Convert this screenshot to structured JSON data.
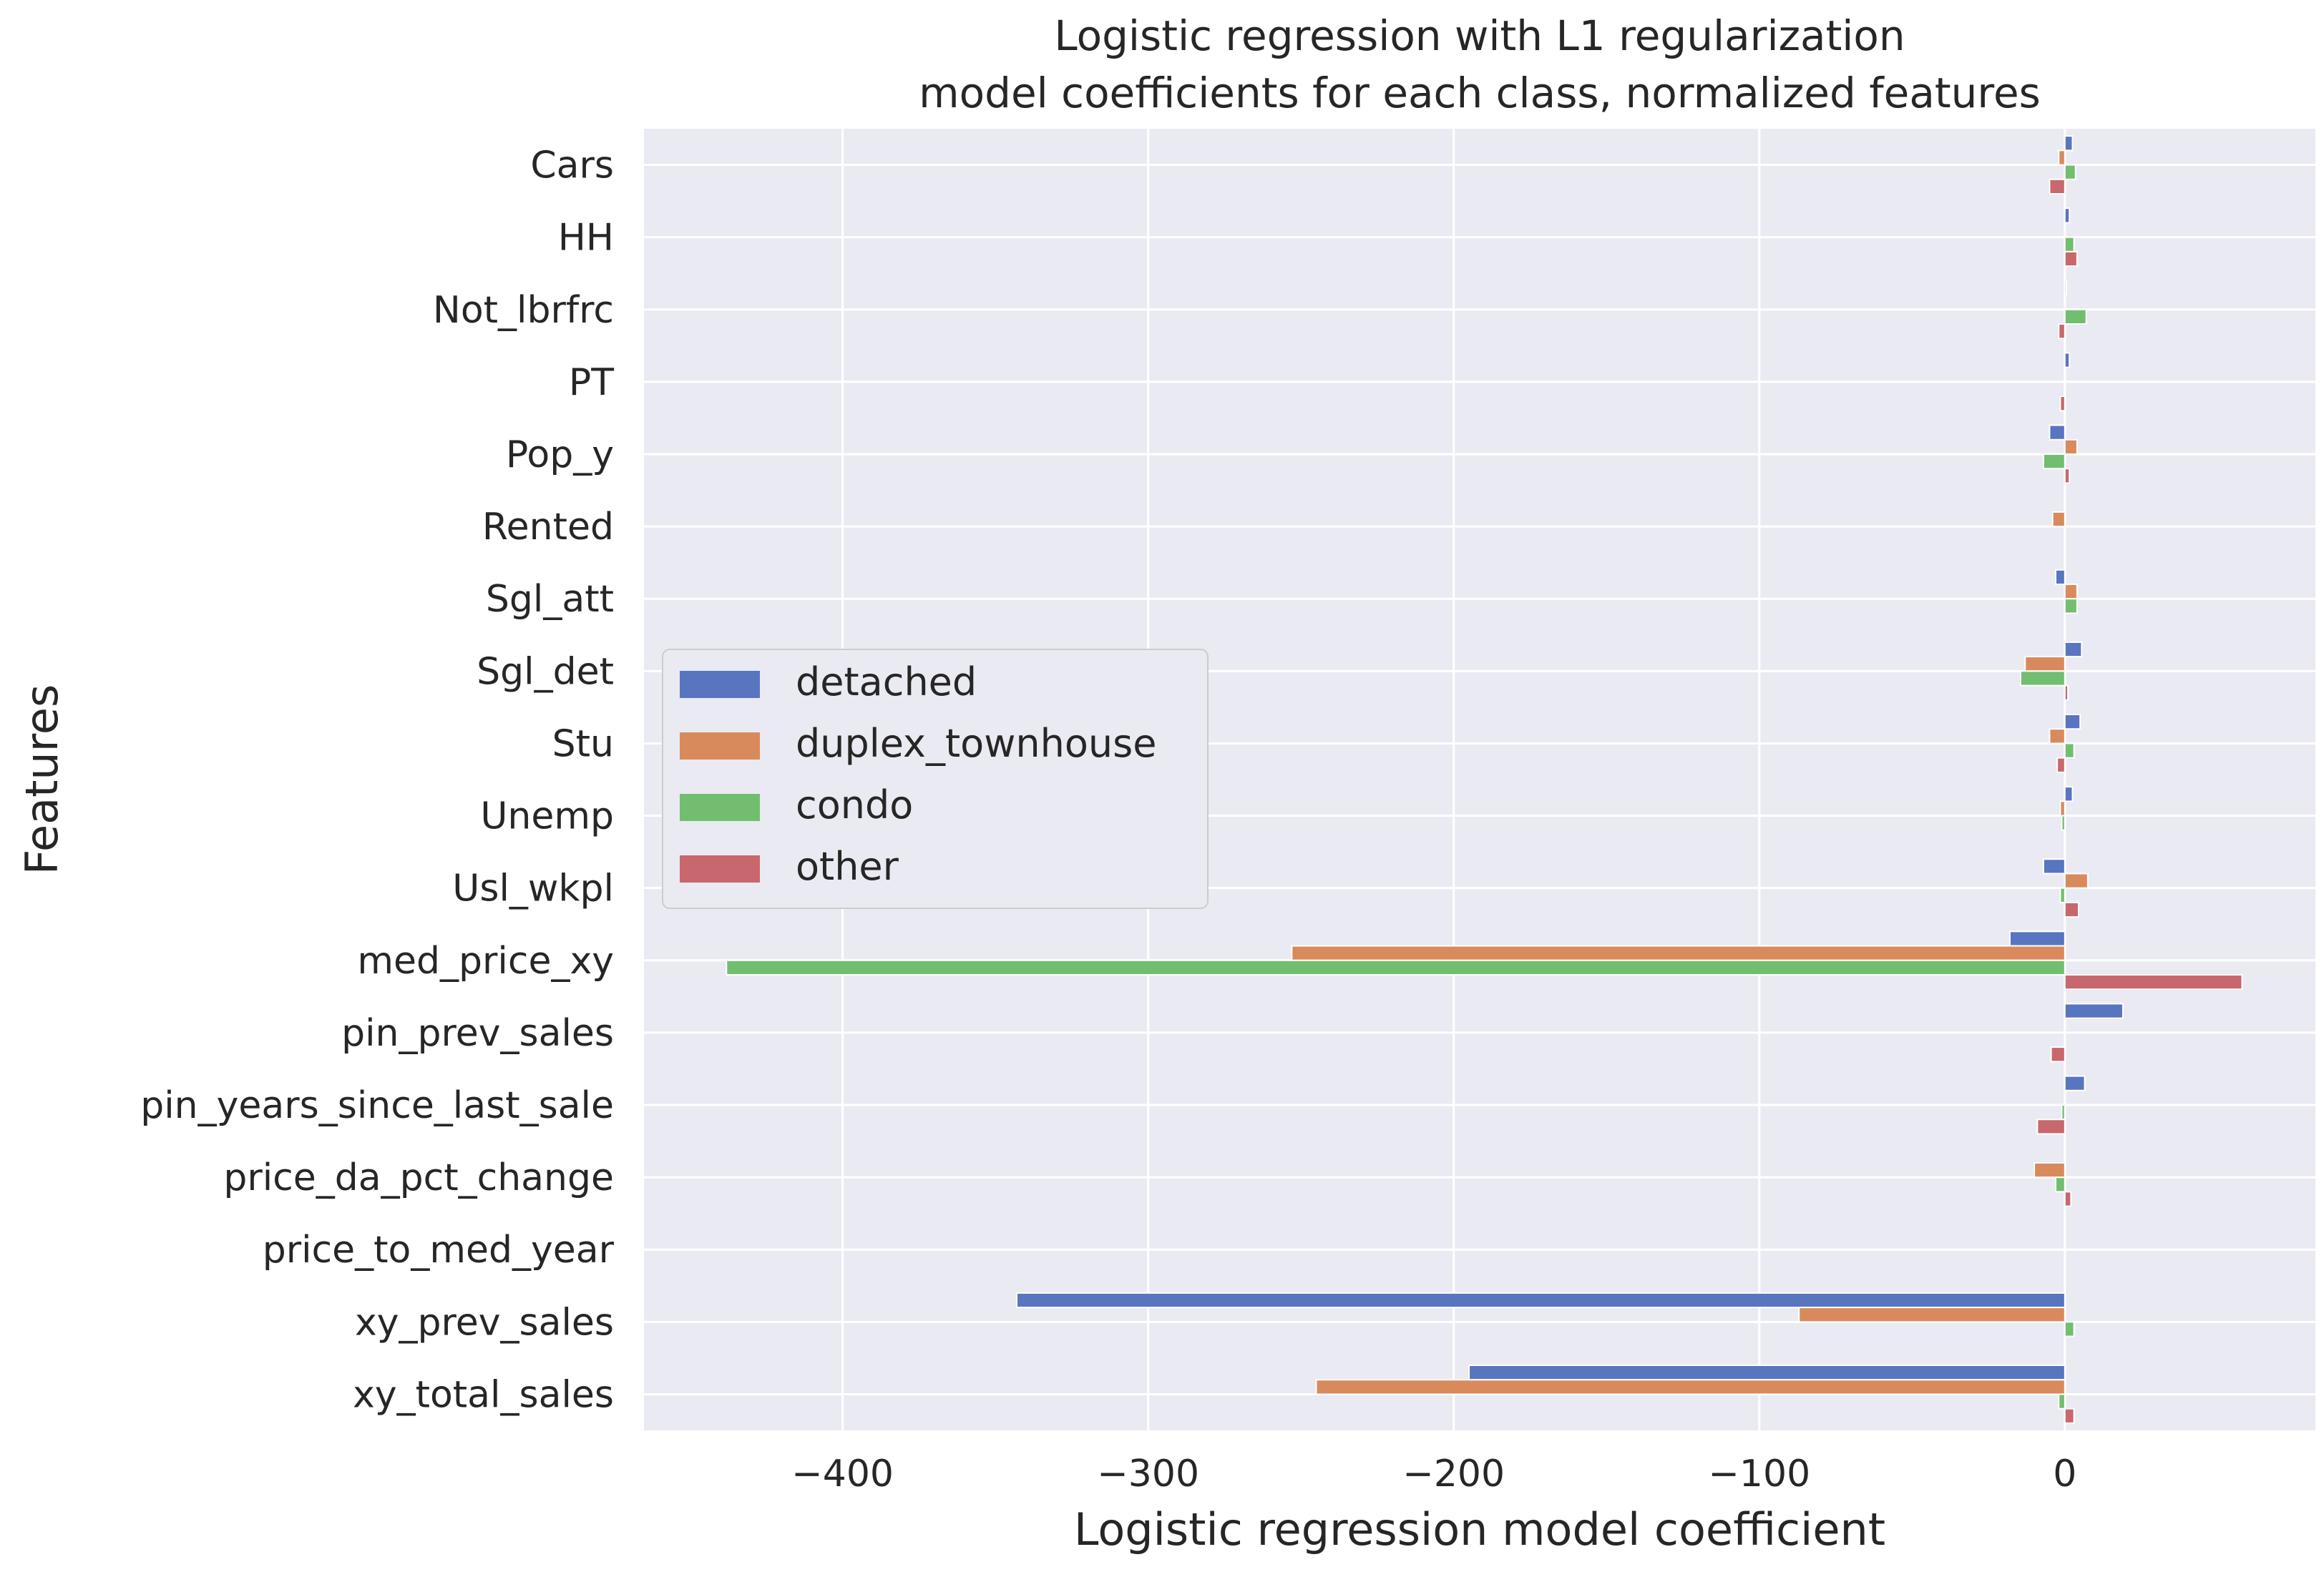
{
  "chart_data": {
    "type": "bar",
    "orientation": "horizontal",
    "title": [
      "Logistic regression with L1 regularization",
      "model coefficients for each class, normalized features"
    ],
    "xlabel": "Logistic regression model coefficient",
    "ylabel": "Features",
    "xlim": [
      -465,
      82
    ],
    "xticks": [
      -400,
      -300,
      -200,
      -100,
      0
    ],
    "xtick_labels": [
      "−400",
      "−300",
      "−200",
      "−100",
      "0"
    ],
    "grid": true,
    "legend_position": "center-left",
    "categories": [
      "Cars",
      "HH",
      "Not_lbrfrc",
      "PT",
      "Pop_y",
      "Rented",
      "Sgl_att",
      "Sgl_det",
      "Stu",
      "Unemp",
      "Usl_wkpl",
      "med_price_xy",
      "pin_prev_sales",
      "pin_years_since_last_sale",
      "price_da_pct_change",
      "price_to_med_year",
      "xy_prev_sales",
      "xy_total_sales"
    ],
    "series": [
      {
        "name": "detached",
        "color": "#5875bf",
        "values": [
          2.5,
          1.5,
          0.5,
          1.5,
          -5,
          0,
          -3,
          5.5,
          5,
          2.5,
          -7,
          -18,
          19,
          6.5,
          0,
          0,
          -343,
          -195
        ]
      },
      {
        "name": "duplex_townhouse",
        "color": "#d98a5d",
        "values": [
          -2,
          0,
          0,
          0,
          4,
          -4,
          4,
          -13,
          -5,
          -1.5,
          7.5,
          -253,
          0,
          0,
          -10,
          0,
          -87,
          -245
        ]
      },
      {
        "name": "condo",
        "color": "#72be70",
        "values": [
          3.5,
          3,
          7,
          0,
          -7,
          0,
          4,
          -14.5,
          3,
          -1,
          -1.5,
          -438,
          0,
          -1,
          -3,
          0,
          3,
          -2
        ]
      },
      {
        "name": "other",
        "color": "#c8686c",
        "values": [
          -5,
          4,
          -2,
          -1.5,
          1.5,
          0,
          0,
          1,
          -2.5,
          0,
          4.5,
          58,
          -4.5,
          -9,
          2,
          0,
          0,
          3
        ]
      }
    ]
  },
  "style": {
    "plot_background": "#eaeaf2",
    "grid_color": "#ffffff",
    "text_color": "#262626"
  }
}
